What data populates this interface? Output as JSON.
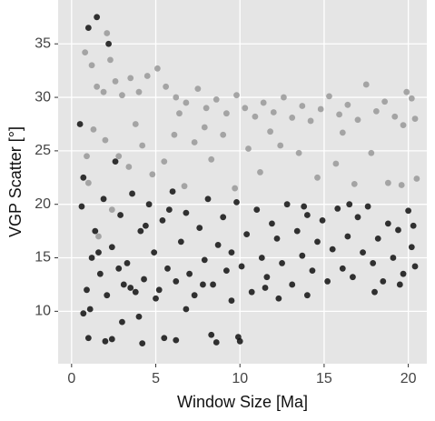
{
  "chart_data": {
    "type": "scatter",
    "x_label": "Window Size [Ma]",
    "y_label": "VGP Scatter [°]",
    "xlim": [
      -0.8,
      21.1
    ],
    "ylim": [
      5.1,
      39.1
    ],
    "xticks": [
      0,
      5,
      10,
      15,
      20
    ],
    "yticks": [
      10,
      15,
      20,
      25,
      30,
      35
    ],
    "grid": true,
    "series": [
      {
        "color": "#999999",
        "x": [
          0.8,
          1.2,
          2.1,
          2.3,
          1.5,
          1.9,
          2.6,
          3.0,
          3.5,
          4.0,
          4.5,
          5.1,
          5.6,
          6.2,
          6.8,
          7.5,
          8.0,
          8.6,
          9.2,
          9.8,
          10.3,
          10.9,
          11.4,
          12.0,
          12.6,
          13.1,
          13.7,
          14.2,
          14.8,
          15.3,
          15.9,
          16.4,
          17.0,
          17.5,
          18.1,
          18.6,
          19.2,
          19.7,
          20.2,
          20.4,
          1.3,
          2.0,
          2.8,
          3.4,
          4.2,
          4.8,
          5.5,
          6.1,
          6.7,
          7.3,
          8.3,
          9.0,
          9.7,
          10.5,
          11.2,
          12.4,
          13.5,
          14.6,
          15.7,
          16.8,
          17.8,
          18.8,
          19.6,
          20.5,
          1.0,
          1.6,
          2.4,
          0.9,
          3.8,
          6.4,
          7.9,
          11.8,
          16.1,
          19.9
        ],
        "values": [
          34.2,
          33,
          36,
          33.5,
          31,
          30.5,
          31.5,
          30.2,
          31.8,
          30.5,
          32,
          32.7,
          31,
          30,
          29.5,
          30.8,
          29,
          29.8,
          28.5,
          30.2,
          29,
          28.2,
          29.5,
          28.6,
          30,
          28.1,
          29.2,
          27.8,
          28.9,
          30.1,
          28.4,
          29.3,
          27.9,
          31.2,
          28.7,
          29.6,
          28.2,
          27.4,
          29.9,
          28,
          27,
          26,
          24.5,
          23.5,
          25.5,
          22.8,
          24,
          26.5,
          21.7,
          25.8,
          24.2,
          26.5,
          21.5,
          25.2,
          23,
          25.5,
          24.8,
          22.5,
          23.8,
          21.9,
          24.8,
          22,
          21.8,
          22.4,
          22,
          17,
          19.5,
          24.5,
          27.5,
          28.5,
          27.2,
          26.8,
          26.7,
          30.5
        ]
      },
      {
        "color": "#111111",
        "x": [
          0.5,
          1.0,
          1.5,
          2.2,
          0.7,
          0.6,
          0.9,
          0.7,
          1.1,
          1.2,
          1.4,
          1.7,
          1.9,
          2.1,
          2.4,
          2.6,
          2.9,
          3.1,
          3.3,
          3.6,
          3.8,
          4.1,
          4.3,
          4.6,
          4.9,
          5.2,
          5.4,
          5.7,
          6.0,
          6.2,
          6.5,
          6.8,
          7.0,
          7.3,
          7.6,
          7.9,
          8.1,
          8.4,
          8.7,
          9.0,
          9.2,
          9.5,
          9.8,
          10.1,
          10.4,
          10.7,
          11.0,
          11.3,
          11.6,
          11.9,
          12.2,
          12.5,
          12.8,
          13.1,
          13.4,
          13.7,
          14.0,
          14.3,
          14.6,
          14.9,
          15.2,
          15.5,
          15.8,
          16.1,
          16.4,
          16.7,
          17.0,
          17.3,
          17.6,
          17.9,
          18.2,
          18.5,
          18.8,
          19.1,
          19.4,
          19.7,
          20.0,
          20.2,
          20.4,
          20.3,
          1.0,
          2.0,
          2.4,
          4.2,
          5.5,
          6.2,
          8.3,
          8.6,
          9.9,
          10.0,
          3.0,
          4.0,
          6.8,
          9.5,
          12.3,
          14.0,
          3.5,
          5.0,
          7.8,
          11.5,
          13.8,
          16.5,
          18.0,
          19.5,
          4.4,
          5.8,
          2.8,
          1.6
        ],
        "values": [
          27.5,
          36.5,
          37.5,
          35,
          22.5,
          19.8,
          12,
          9.8,
          10.2,
          15,
          17.5,
          13.5,
          20.5,
          11.5,
          16,
          24,
          19,
          12.5,
          14.5,
          21,
          11.8,
          17.5,
          13,
          20,
          15.5,
          12,
          18.5,
          14,
          21.2,
          12.8,
          16.5,
          19.2,
          13.5,
          11.5,
          17.8,
          14.8,
          20.5,
          12.5,
          16.2,
          18.8,
          13.8,
          15.5,
          20.2,
          14.2,
          17.2,
          11.8,
          19.5,
          15,
          13.2,
          18.2,
          16.8,
          14.5,
          20,
          12.5,
          17.5,
          15.2,
          19,
          13.8,
          16.5,
          18.5,
          12.8,
          15.8,
          19.6,
          14,
          17,
          13.2,
          18.8,
          15.5,
          19.8,
          14.5,
          16.8,
          12.8,
          18.2,
          15,
          17.6,
          13.5,
          19.4,
          16,
          14.2,
          18,
          7.5,
          7.2,
          7.4,
          7,
          7.5,
          7.3,
          7.8,
          7.1,
          7.6,
          7.2,
          9,
          9.5,
          10.2,
          11,
          11.2,
          11.5,
          12.2,
          11.2,
          12.5,
          12.2,
          19.8,
          20,
          11.8,
          12.5,
          18,
          19.5,
          14,
          15.5
        ]
      }
    ]
  }
}
